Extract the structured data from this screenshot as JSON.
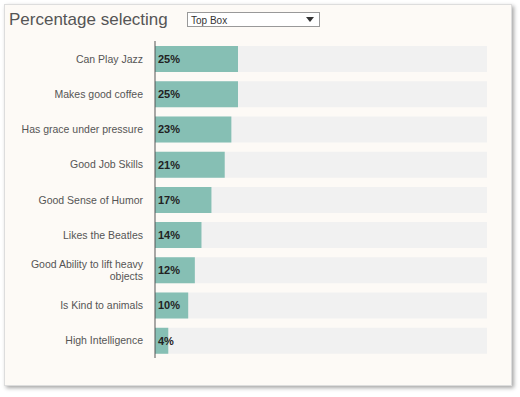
{
  "chart_data": {
    "type": "bar",
    "title": "Percentage selecting",
    "dropdown": "Top Box",
    "orientation": "horizontal",
    "categories": [
      "Can Play Jazz",
      "Makes good coffee",
      "Has grace under pressure",
      "Good Job Skills",
      "Good Sense of Humor",
      "Likes the Beatles",
      "Good Ability to lift heavy objects",
      "Is Kind to animals",
      "High Intelligence"
    ],
    "values": [
      25,
      25,
      23,
      21,
      17,
      14,
      12,
      10,
      4
    ],
    "value_labels": [
      "25%",
      "25%",
      "23%",
      "21%",
      "17%",
      "14%",
      "12%",
      "10%",
      "4%"
    ],
    "color": "#86bfb4",
    "xlim": [
      0,
      100
    ],
    "data_labels": true,
    "tick_labels": "y"
  }
}
